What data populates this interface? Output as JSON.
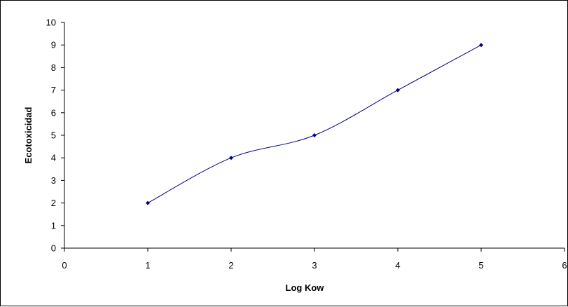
{
  "chart_data": {
    "type": "line",
    "title": "",
    "xlabel": "Log Kow",
    "ylabel": "Ecotoxicidad",
    "xlim": [
      0,
      6
    ],
    "ylim": [
      0,
      10
    ],
    "xticks": [
      0,
      1,
      2,
      3,
      4,
      5,
      6
    ],
    "yticks": [
      0,
      1,
      2,
      3,
      4,
      5,
      6,
      7,
      8,
      9,
      10
    ],
    "grid": false,
    "legend": "none",
    "smoothed": true,
    "series": [
      {
        "color": "#000080",
        "marker": "diamond",
        "x": [
          1,
          2,
          3,
          4,
          5
        ],
        "y": [
          2,
          4,
          5,
          7,
          9
        ]
      }
    ]
  }
}
